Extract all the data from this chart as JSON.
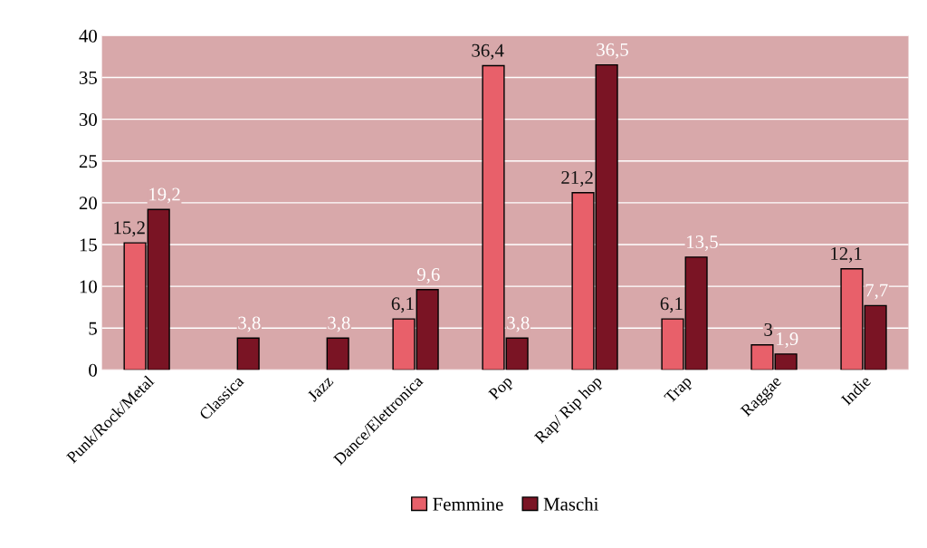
{
  "chart_data": {
    "type": "bar",
    "categories": [
      "Punk/Rock/Metal",
      "Classica",
      "Jazz",
      "Dance/Elettronica",
      "Pop",
      "Rap/ Rip hop",
      "Trap",
      "Raggae",
      "Indie"
    ],
    "series": [
      {
        "name": "Femmine",
        "color": "#e8606a",
        "values": [
          15.2,
          null,
          null,
          6.1,
          36.4,
          21.2,
          6.1,
          3,
          12.1
        ],
        "value_labels": [
          "15,2",
          null,
          null,
          "6,1",
          "36,4",
          "21,2",
          "6,1",
          "3",
          "12,1"
        ]
      },
      {
        "name": "Maschi",
        "color": "#7a1424",
        "values": [
          19.2,
          3.8,
          3.8,
          9.6,
          3.8,
          36.5,
          13.5,
          1.9,
          7.7
        ],
        "value_labels": [
          "19,2",
          "3,8",
          "3,8",
          "9,6",
          "3,8",
          "36,5",
          "13,5",
          "1,9",
          "7,7"
        ]
      }
    ],
    "ylim": [
      0,
      40
    ],
    "yticks": [
      0,
      5,
      10,
      15,
      20,
      25,
      30,
      35,
      40
    ],
    "grid": "y",
    "legend": "bottom"
  }
}
